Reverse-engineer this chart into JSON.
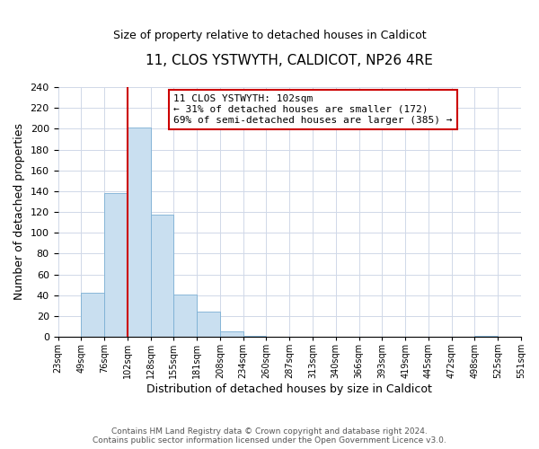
{
  "title": "11, CLOS YSTWYTH, CALDICOT, NP26 4RE",
  "subtitle": "Size of property relative to detached houses in Caldicot",
  "xlabel": "Distribution of detached houses by size in Caldicot",
  "ylabel": "Number of detached properties",
  "bar_values": [
    0,
    42,
    138,
    201,
    117,
    41,
    24,
    5,
    1,
    0,
    0,
    0,
    0,
    0,
    0,
    0,
    0,
    0,
    1,
    0,
    0
  ],
  "bin_labels": [
    "23sqm",
    "49sqm",
    "76sqm",
    "102sqm",
    "128sqm",
    "155sqm",
    "181sqm",
    "208sqm",
    "234sqm",
    "260sqm",
    "287sqm",
    "313sqm",
    "340sqm",
    "366sqm",
    "393sqm",
    "419sqm",
    "445sqm",
    "472sqm",
    "498sqm",
    "525sqm",
    "551sqm"
  ],
  "bar_color": "#c9dff0",
  "bar_edge_color": "#7bafd4",
  "vline_color": "#cc0000",
  "ylim": [
    0,
    240
  ],
  "yticks": [
    0,
    20,
    40,
    60,
    80,
    100,
    120,
    140,
    160,
    180,
    200,
    220,
    240
  ],
  "annotation_title": "11 CLOS YSTWYTH: 102sqm",
  "annotation_line1": "← 31% of detached houses are smaller (172)",
  "annotation_line2": "69% of semi-detached houses are larger (385) →",
  "annotation_box_color": "#ffffff",
  "annotation_box_edge": "#cc0000",
  "footer_line1": "Contains HM Land Registry data © Crown copyright and database right 2024.",
  "footer_line2": "Contains public sector information licensed under the Open Government Licence v3.0.",
  "background_color": "#ffffff",
  "grid_color": "#d0d8e8"
}
